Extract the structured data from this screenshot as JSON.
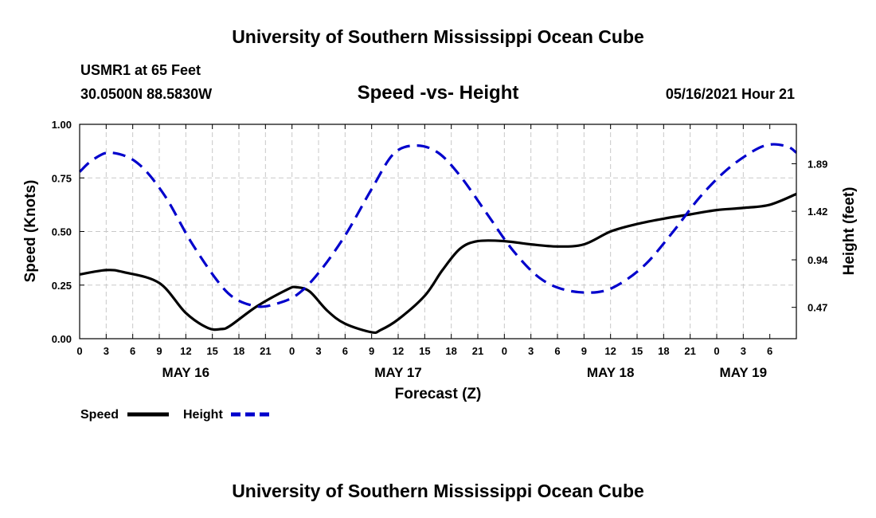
{
  "header": {
    "title": "University of Southern Mississippi Ocean Cube",
    "station": "USMR1 at 65 Feet",
    "coords": "30.0500N  88.5830W",
    "subtitle": "Speed -vs- Height",
    "datetime": "05/16/2021 Hour 21"
  },
  "footer": {
    "title": "University of Southern Mississippi Ocean Cube"
  },
  "chart_data": {
    "type": "line",
    "title": "Speed -vs- Height",
    "xlabel": "Forecast (Z)",
    "ylabel": "Speed (Knots)",
    "y2label": "Height (feet)",
    "x_hours_range": [
      0,
      81
    ],
    "x_tick_labels": [
      "0",
      "3",
      "6",
      "9",
      "12",
      "15",
      "18",
      "21",
      "0",
      "3",
      "6",
      "9",
      "12",
      "15",
      "18",
      "21",
      "0",
      "3",
      "6",
      "9",
      "12",
      "15",
      "18",
      "21",
      "0",
      "3",
      "6"
    ],
    "day_labels": [
      {
        "label": "MAY 16",
        "hour": 12
      },
      {
        "label": "MAY 17",
        "hour": 36
      },
      {
        "label": "MAY 18",
        "hour": 60
      },
      {
        "label": "MAY 19",
        "hour": 75
      }
    ],
    "ylim": [
      0,
      1
    ],
    "y_ticks": [
      0,
      0.25,
      0.5,
      0.75,
      1.0
    ],
    "y_tick_labels": [
      "0.00",
      "0.25",
      "0.50",
      "0.75",
      "1.00"
    ],
    "y2lim": [
      0.16,
      2.28
    ],
    "y2_ticks": [
      0.47,
      0.94,
      1.42,
      1.89
    ],
    "y2_tick_labels": [
      "0.47",
      "0.94",
      "1.42",
      "1.89"
    ],
    "grid": true,
    "legend": "bottom-left",
    "series": [
      {
        "name": "Speed",
        "axis": "left",
        "color": "#000000",
        "style": "solid",
        "x": [
          0,
          3,
          5,
          9,
          12,
          14.5,
          16,
          17,
          20,
          23.5,
          24.5,
          26,
          28,
          30,
          33,
          34,
          36,
          39,
          41,
          43,
          45,
          48,
          51,
          54,
          57,
          60,
          63,
          66,
          69,
          72,
          75,
          78,
          81
        ],
        "y": [
          0.3,
          0.32,
          0.31,
          0.26,
          0.12,
          0.05,
          0.045,
          0.06,
          0.15,
          0.23,
          0.24,
          0.22,
          0.13,
          0.07,
          0.03,
          0.04,
          0.09,
          0.2,
          0.32,
          0.42,
          0.455,
          0.455,
          0.44,
          0.43,
          0.44,
          0.5,
          0.535,
          0.56,
          0.58,
          0.6,
          0.61,
          0.625,
          0.675
        ]
      },
      {
        "name": "Height",
        "axis": "right",
        "color": "#0000cc",
        "style": "dashed",
        "x": [
          0,
          1.5,
          3.5,
          6.5,
          9.5,
          12.5,
          15.5,
          17.5,
          20,
          22,
          24.5,
          27,
          30,
          33,
          35.5,
          38,
          40.5,
          43,
          46,
          49,
          52,
          55,
          58.5,
          61,
          64,
          67,
          70,
          73,
          76,
          78,
          80,
          81
        ],
        "y": [
          1.81,
          1.93,
          2.0,
          1.9,
          1.59,
          1.13,
          0.74,
          0.56,
          0.48,
          0.5,
          0.59,
          0.81,
          1.18,
          1.64,
          1.99,
          2.07,
          2.0,
          1.77,
          1.4,
          1.03,
          0.76,
          0.64,
          0.62,
          0.7,
          0.9,
          1.21,
          1.55,
          1.82,
          2.01,
          2.08,
          2.06,
          2.0
        ]
      }
    ]
  },
  "legend": {
    "speed_label": "Speed",
    "height_label": "Height"
  }
}
